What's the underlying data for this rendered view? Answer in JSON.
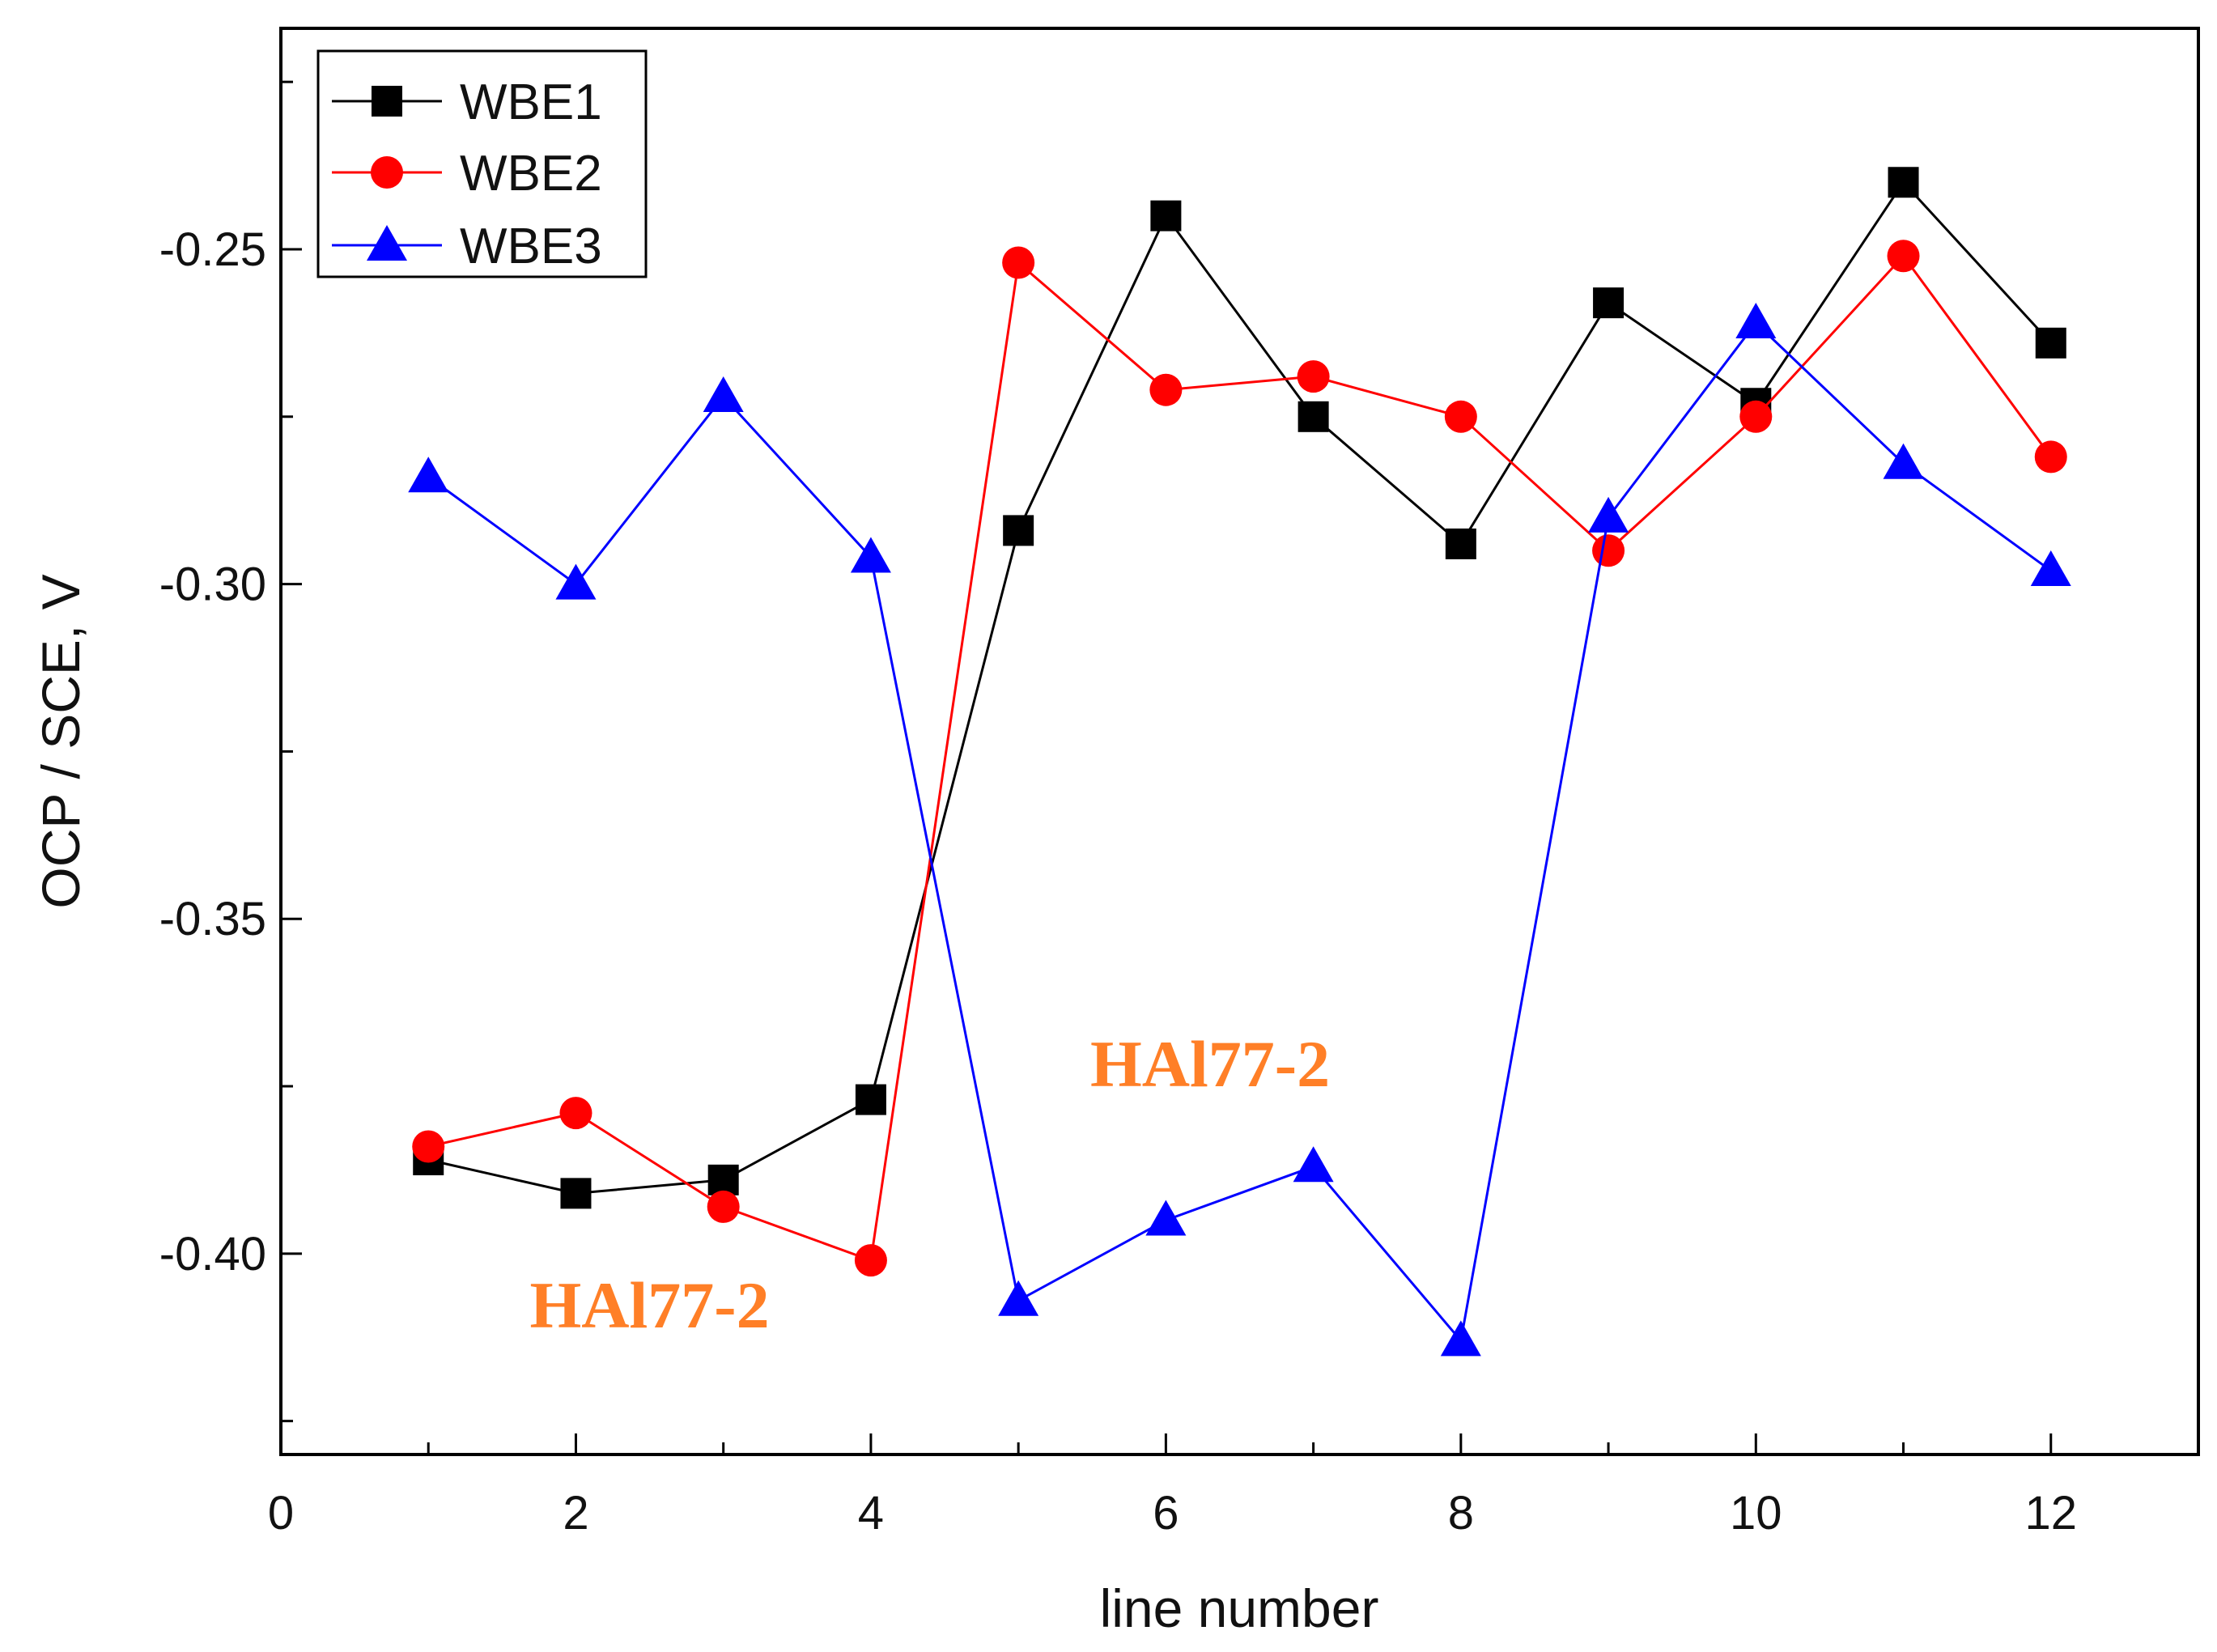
{
  "chart_data": {
    "type": "line",
    "title": "",
    "xlabel": "line number",
    "ylabel": "OCP / SCE, V",
    "xlim": [
      0,
      13
    ],
    "ylim": [
      -0.43,
      -0.217
    ],
    "xticks": [
      0,
      2,
      4,
      6,
      8,
      10,
      12
    ],
    "xtick_labels": [
      "0",
      "2",
      "4",
      "6",
      "8",
      "10",
      "12"
    ],
    "yticks": [
      -0.25,
      -0.3,
      -0.35,
      -0.4
    ],
    "ytick_labels": [
      "-0.25",
      "-0.30",
      "-0.35",
      "-0.40"
    ],
    "grid": false,
    "legend_position": "top-left",
    "x": [
      1,
      2,
      3,
      4,
      5,
      6,
      7,
      8,
      9,
      10,
      11,
      12
    ],
    "series": [
      {
        "name": "WBE1",
        "color": "#000000",
        "marker": "square",
        "values": [
          -0.386,
          -0.391,
          -0.389,
          -0.377,
          -0.292,
          -0.245,
          -0.275,
          -0.294,
          -0.258,
          -0.273,
          -0.24,
          -0.264
        ]
      },
      {
        "name": "WBE2",
        "color": "#ff0000",
        "marker": "circle",
        "values": [
          -0.384,
          -0.379,
          -0.393,
          -0.401,
          -0.252,
          -0.271,
          -0.269,
          -0.275,
          -0.295,
          -0.275,
          -0.251,
          -0.281
        ]
      },
      {
        "name": "WBE3",
        "color": "#0000ff",
        "marker": "triangle",
        "values": [
          -0.284,
          -0.3,
          -0.272,
          -0.296,
          -0.407,
          -0.395,
          -0.387,
          -0.413,
          -0.29,
          -0.261,
          -0.282,
          -0.298
        ]
      }
    ],
    "annotations": [
      {
        "text": "HAl77-2",
        "x": 6.3,
        "y": -0.375,
        "color": "#ff7f27"
      },
      {
        "text": "HAl77-2",
        "x": 2.5,
        "y": -0.411,
        "color": "#ff7f27"
      }
    ]
  }
}
